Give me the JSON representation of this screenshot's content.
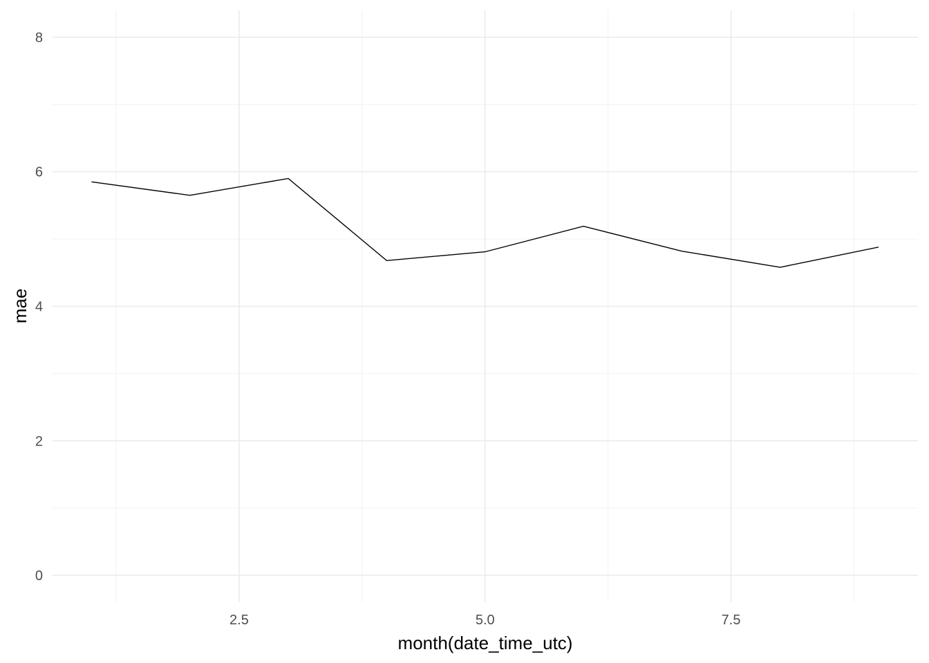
{
  "chart_data": {
    "type": "line",
    "title": "",
    "xlabel": "month(date_time_utc)",
    "ylabel": "mae",
    "x": [
      1,
      2,
      3,
      4,
      5,
      6,
      7,
      8,
      9
    ],
    "series": [
      {
        "values": [
          5.85,
          5.65,
          5.9,
          4.68,
          4.81,
          5.19,
          4.82,
          4.58,
          4.88
        ],
        "color": "#000000"
      }
    ],
    "xlim": [
      0.6,
      9.4
    ],
    "ylim": [
      -0.4,
      8.4
    ],
    "x_ticks": [
      2.5,
      5.0,
      7.5
    ],
    "x_tick_labels": [
      "2.5",
      "5.0",
      "7.5"
    ],
    "x_minor_ticks": [
      1.25,
      3.75,
      6.25,
      8.75
    ],
    "y_ticks": [
      0,
      2,
      4,
      6,
      8
    ],
    "y_tick_labels": [
      "0",
      "2",
      "4",
      "6",
      "8"
    ],
    "y_minor_ticks": [
      1,
      3,
      5,
      7
    ],
    "grid": true,
    "legend": "none",
    "gridColor": "#ebebeb"
  }
}
